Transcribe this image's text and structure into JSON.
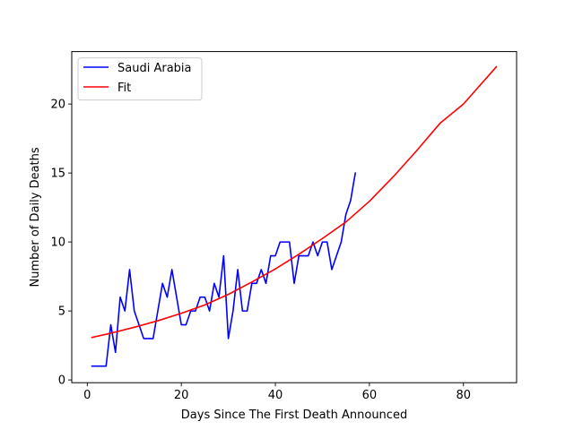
{
  "chart_data": {
    "type": "line",
    "title": "",
    "xlabel": "Days Since The First Death Announced",
    "ylabel": "Number of Daily Deaths",
    "xlim": [
      -3.3,
      91.3
    ],
    "ylim": [
      -0.2,
      23.8
    ],
    "xticks": [
      0,
      20,
      40,
      60,
      80
    ],
    "yticks": [
      0,
      5,
      10,
      15,
      20
    ],
    "grid": false,
    "legend_position": "upper-left",
    "series": [
      {
        "name": "Saudi Arabia",
        "color": "#0000ff",
        "x": [
          1,
          2,
          3,
          4,
          5,
          6,
          7,
          8,
          9,
          10,
          11,
          12,
          13,
          14,
          15,
          16,
          17,
          18,
          19,
          20,
          21,
          22,
          23,
          24,
          25,
          26,
          27,
          28,
          29,
          30,
          31,
          32,
          33,
          34,
          35,
          36,
          37,
          38,
          39,
          40,
          41,
          42,
          43,
          44,
          45,
          46,
          47,
          48,
          49,
          50,
          51,
          52,
          53,
          54,
          55,
          56,
          57
        ],
        "y": [
          1,
          1,
          1,
          1,
          4,
          2,
          6,
          5,
          8,
          5,
          4,
          3,
          3,
          3,
          5,
          7,
          6,
          8,
          6,
          4,
          4,
          5,
          5,
          6,
          6,
          5,
          7,
          6,
          9,
          3,
          5,
          8,
          5,
          5,
          7,
          7,
          8,
          7,
          9,
          9,
          10,
          10,
          10,
          7,
          9,
          9,
          9,
          10,
          9,
          10,
          10,
          8,
          9,
          10,
          12,
          13,
          15
        ]
      },
      {
        "name": "Fit",
        "color": "#ff0000",
        "x": [
          1,
          5,
          10,
          15,
          20,
          25,
          30,
          35,
          40,
          45,
          50,
          55,
          60,
          65,
          70,
          75,
          80,
          87
        ],
        "y": [
          3.08,
          3.39,
          3.82,
          4.29,
          4.83,
          5.44,
          6.2,
          7.1,
          8.05,
          9.11,
          10.25,
          11.45,
          12.95,
          14.7,
          16.6,
          18.6,
          20.0,
          22.7
        ]
      }
    ]
  }
}
